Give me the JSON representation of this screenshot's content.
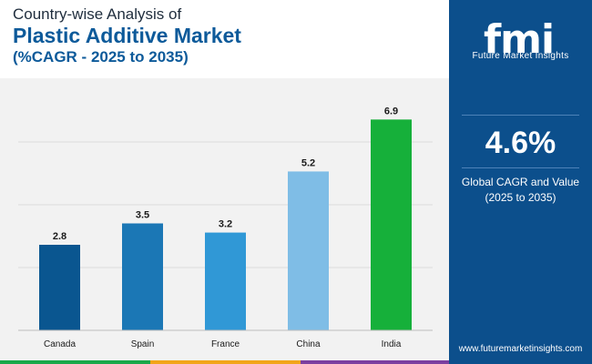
{
  "header": {
    "line1": "Country-wise Analysis of",
    "line2": "Plastic Additive Market",
    "line3": "(%CAGR - 2025 to 2035)"
  },
  "chart_data": {
    "type": "bar",
    "title": "Plastic Additive Market",
    "categories": [
      "Canada",
      "Spain",
      "France",
      "China",
      "India"
    ],
    "values": [
      2.8,
      3.5,
      3.2,
      5.2,
      6.9
    ],
    "data_labels": [
      "2.8",
      "3.5",
      "3.2",
      "5.2",
      "6.9"
    ],
    "bar_colors": [
      "#0a5690",
      "#1b77b5",
      "#3098d6",
      "#7fbde6",
      "#16b03a"
    ],
    "xlabel": "",
    "ylabel": "",
    "ylim": [
      0,
      7
    ],
    "grid": true
  },
  "side_panel": {
    "brand": "Future Market Insights",
    "logo_text": "fmi",
    "kpi_value": "4.6%",
    "kpi_label_line1": "Global CAGR and Value",
    "kpi_label_line2": "(2025 to 2035)",
    "website": "www.futuremarketinsights.com"
  },
  "colors": {
    "panel_bg": "#0c4f8c",
    "title_accent": "#0d5a9a",
    "stripe": [
      "#1aa84a",
      "#f2a51a",
      "#7b3fa0",
      "#0c4f8c"
    ]
  }
}
